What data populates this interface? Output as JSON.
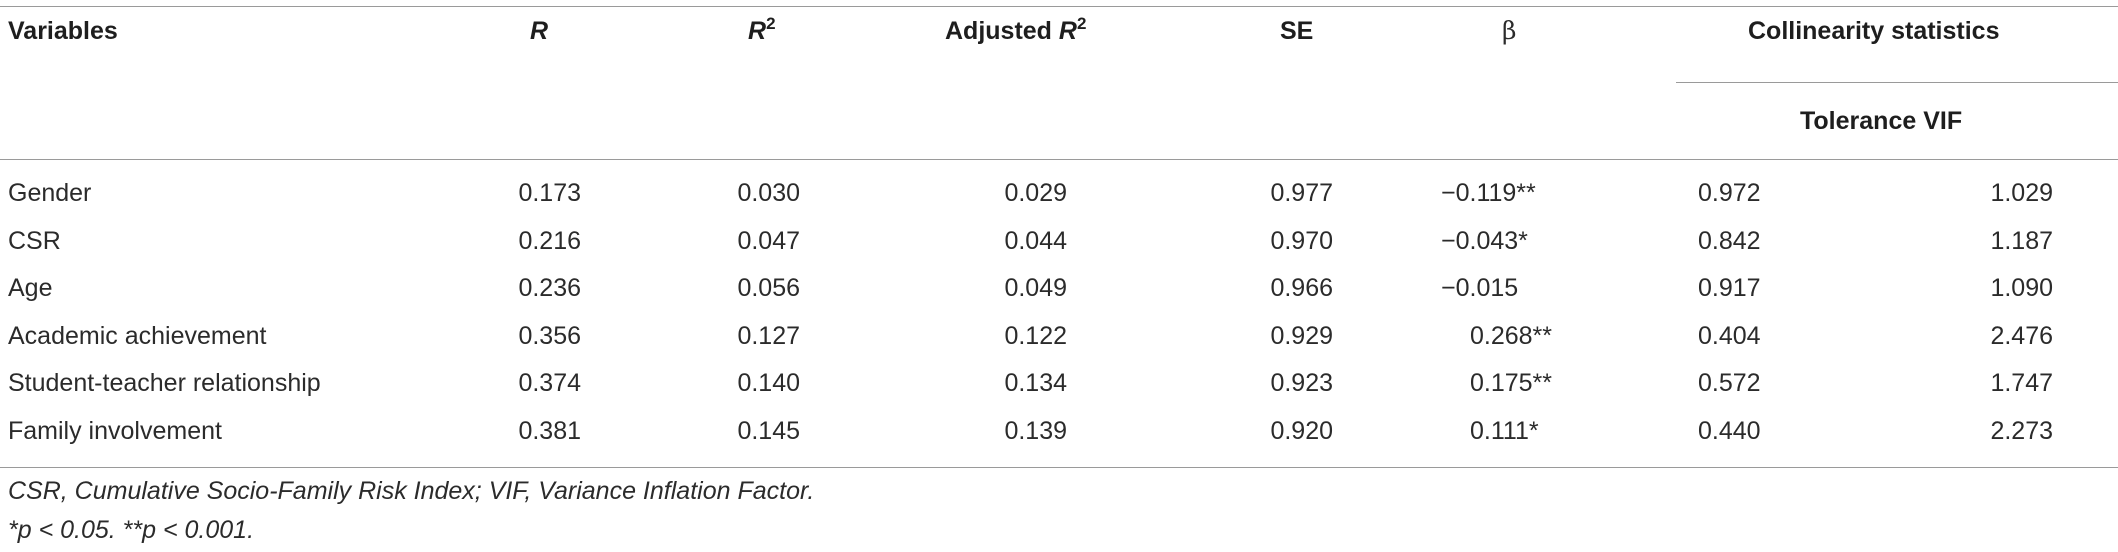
{
  "header": {
    "variables": "Variables",
    "r": "R",
    "r2_base": "R",
    "r2_sup": "2",
    "adj_r2_prefix": "Adjusted ",
    "adj_r2_base": "R",
    "adj_r2_sup": "2",
    "se": "SE",
    "beta": "β",
    "collinearity": "Collinearity statistics",
    "subheader": "Tolerance VIF"
  },
  "rows": [
    {
      "variable": "Gender",
      "r": "0.173",
      "r2": "0.030",
      "adj_r2": "0.029",
      "se": "0.977",
      "beta": "−0.119**",
      "tolerance": "0.972",
      "vif": "1.029"
    },
    {
      "variable": "CSR",
      "r": "0.216",
      "r2": "0.047",
      "adj_r2": "0.044",
      "se": "0.970",
      "beta": "−0.043*",
      "tolerance": "0.842",
      "vif": "1.187"
    },
    {
      "variable": "Age",
      "r": "0.236",
      "r2": "0.056",
      "adj_r2": "0.049",
      "se": "0.966",
      "beta": "−0.015",
      "tolerance": "0.917",
      "vif": "1.090"
    },
    {
      "variable": "Academic achievement",
      "r": "0.356",
      "r2": "0.127",
      "adj_r2": "0.122",
      "se": "0.929",
      "beta": "0.268**",
      "tolerance": "0.404",
      "vif": "2.476"
    },
    {
      "variable": "Student-teacher relationship",
      "r": "0.374",
      "r2": "0.140",
      "adj_r2": "0.134",
      "se": "0.923",
      "beta": "0.175**",
      "tolerance": "0.572",
      "vif": "1.747"
    },
    {
      "variable": "Family involvement",
      "r": "0.381",
      "r2": "0.145",
      "adj_r2": "0.139",
      "se": "0.920",
      "beta": "0.111*",
      "tolerance": "0.440",
      "vif": "2.273"
    }
  ],
  "footnotes": {
    "abbreviations": "CSR, Cumulative Socio-Family Risk Index; VIF, Variance Inflation Factor.",
    "significance": "*p < 0.05. **p < 0.001."
  }
}
